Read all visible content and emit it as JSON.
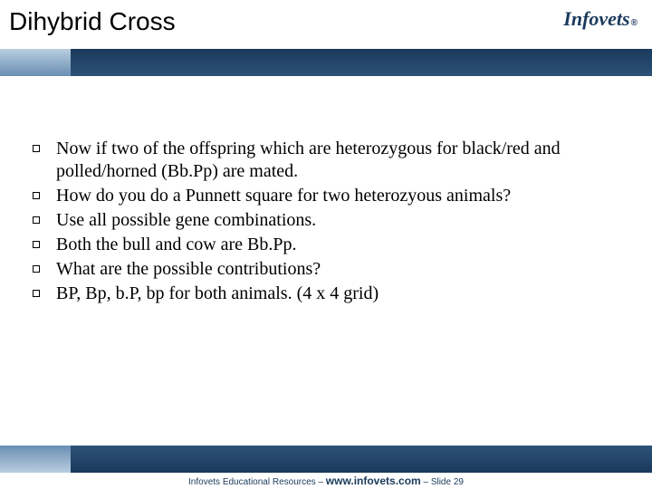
{
  "title": "Dihybrid Cross",
  "logo": {
    "part1": "Infov",
    "part2": "ets",
    "reg": "®"
  },
  "bullets": [
    "Now if two of the offspring which are heterozygous for black/red and polled/horned (Bb.Pp) are mated.",
    "How do you do a Punnett square for two heterozyous animals?",
    "Use all possible gene combinations.",
    "Both the bull and cow are Bb.Pp.",
    "What are the possible contributions?",
    "BP, Bp, b.P, bp for both animals. (4 x 4 grid)"
  ],
  "footer": {
    "prefix": "Infovets Educational Resources – ",
    "url": "www.infovets.com",
    "suffix": " – Slide 29"
  },
  "colors": {
    "brand_dark": "#1a3a5c",
    "brand_light": "#b8cde0"
  }
}
